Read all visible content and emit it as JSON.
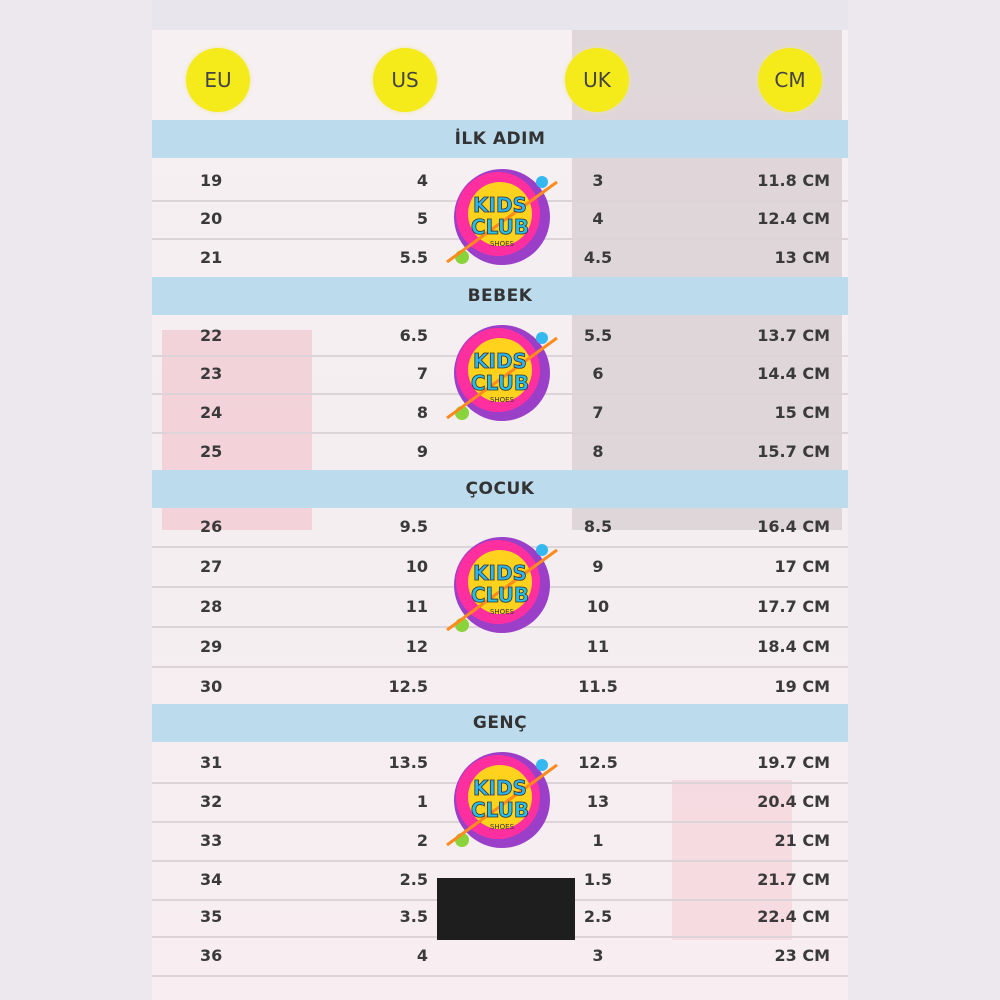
{
  "headers": {
    "eu": "EU",
    "us": "US",
    "uk": "UK",
    "cm": "CM"
  },
  "colors": {
    "header_circle": "#f5ea1a",
    "section_band": "#bcdcee"
  },
  "logo_text": "KIDS CLUB SHOES",
  "sections": [
    {
      "title": "İLK ADIM",
      "rows": [
        {
          "eu": "19",
          "us": "4",
          "uk": "3",
          "cm": "11.8 CM"
        },
        {
          "eu": "20",
          "us": "5",
          "uk": "4",
          "cm": "12.4 CM"
        },
        {
          "eu": "21",
          "us": "5.5",
          "uk": "4.5",
          "cm": "13 CM"
        }
      ]
    },
    {
      "title": "BEBEK",
      "rows": [
        {
          "eu": "22",
          "us": "6.5",
          "uk": "5.5",
          "cm": "13.7 CM"
        },
        {
          "eu": "23",
          "us": "7",
          "uk": "6",
          "cm": "14.4 CM"
        },
        {
          "eu": "24",
          "us": "8",
          "uk": "7",
          "cm": "15 CM"
        },
        {
          "eu": "25",
          "us": "9",
          "uk": "8",
          "cm": "15.7 CM"
        }
      ]
    },
    {
      "title": "ÇOCUK",
      "rows": [
        {
          "eu": "26",
          "us": "9.5",
          "uk": "8.5",
          "cm": "16.4 CM"
        },
        {
          "eu": "27",
          "us": "10",
          "uk": "9",
          "cm": "17 CM"
        },
        {
          "eu": "28",
          "us": "11",
          "uk": "10",
          "cm": "17.7 CM"
        },
        {
          "eu": "29",
          "us": "12",
          "uk": "11",
          "cm": "18.4 CM"
        },
        {
          "eu": "30",
          "us": "12.5",
          "uk": "11.5",
          "cm": "19 CM"
        }
      ]
    },
    {
      "title": "GENÇ",
      "rows": [
        {
          "eu": "31",
          "us": "13.5",
          "uk": "12.5",
          "cm": "19.7 CM"
        },
        {
          "eu": "32",
          "us": "1",
          "uk": "13",
          "cm": "20.4 CM"
        },
        {
          "eu": "33",
          "us": "2",
          "uk": "1",
          "cm": "21 CM"
        },
        {
          "eu": "34",
          "us": "2.5",
          "uk": "1.5",
          "cm": "21.7 CM"
        },
        {
          "eu": "35",
          "us": "3.5",
          "uk": "2.5",
          "cm": "22.4 CM"
        },
        {
          "eu": "36",
          "us": "4",
          "uk": "3",
          "cm": "23 CM"
        }
      ]
    }
  ]
}
